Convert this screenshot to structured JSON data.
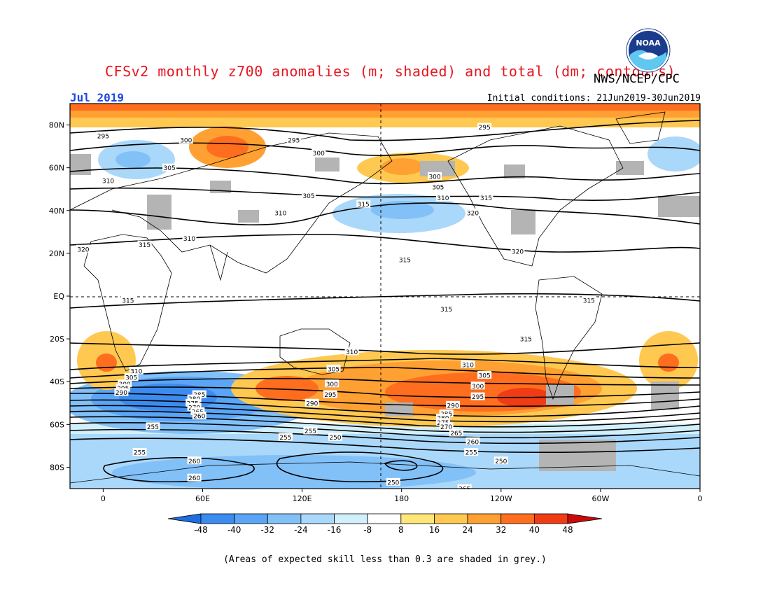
{
  "header": {
    "title": "CFSv2 monthly z700 anomalies (m; shaded) and total (dm; contours)",
    "agency": "NWS/NCEP/CPC",
    "month": "Jul 2019",
    "initial_conditions": "Initial conditions: 21Jun2019-30Jun2019",
    "logo_text": "NOAA"
  },
  "map": {
    "lat_labels": [
      "80N",
      "60N",
      "40N",
      "20N",
      "EQ",
      "20S",
      "40S",
      "60S",
      "80S"
    ],
    "lon_labels": [
      "0",
      "60E",
      "120E",
      "180",
      "120W",
      "60W",
      "0"
    ],
    "contour_labels": [
      {
        "text": "295",
        "lon": 0,
        "lat": 75
      },
      {
        "text": "300",
        "lon": 50,
        "lat": 73
      },
      {
        "text": "295",
        "lon": 115,
        "lat": 73
      },
      {
        "text": "300",
        "lon": 130,
        "lat": 67
      },
      {
        "text": "295",
        "lon": 230,
        "lat": 79
      },
      {
        "text": "305",
        "lon": 40,
        "lat": 60
      },
      {
        "text": "310",
        "lon": 3,
        "lat": 54
      },
      {
        "text": "305",
        "lon": 124,
        "lat": 47
      },
      {
        "text": "310",
        "lon": 107,
        "lat": 39
      },
      {
        "text": "315",
        "lon": 157,
        "lat": 43
      },
      {
        "text": "300",
        "lon": 200,
        "lat": 56
      },
      {
        "text": "305",
        "lon": 202,
        "lat": 51
      },
      {
        "text": "310",
        "lon": 205,
        "lat": 46
      },
      {
        "text": "315",
        "lon": 231,
        "lat": 46
      },
      {
        "text": "320",
        "lon": 223,
        "lat": 39
      },
      {
        "text": "315",
        "lon": 25,
        "lat": 24
      },
      {
        "text": "310",
        "lon": 52,
        "lat": 27
      },
      {
        "text": "320",
        "lon": -12,
        "lat": 22
      },
      {
        "text": "320",
        "lon": 250,
        "lat": 21
      },
      {
        "text": "315",
        "lon": 182,
        "lat": 17
      },
      {
        "text": "315",
        "lon": 15,
        "lat": -2
      },
      {
        "text": "315",
        "lon": 207,
        "lat": -6
      },
      {
        "text": "315",
        "lon": 293,
        "lat": -2
      },
      {
        "text": "315",
        "lon": 255,
        "lat": -20
      },
      {
        "text": "310",
        "lon": 150,
        "lat": -26
      },
      {
        "text": "310",
        "lon": 220,
        "lat": -32
      },
      {
        "text": "305",
        "lon": 230,
        "lat": -37
      },
      {
        "text": "310",
        "lon": 20,
        "lat": -35
      },
      {
        "text": "305",
        "lon": 17,
        "lat": -38
      },
      {
        "text": "300",
        "lon": 13,
        "lat": -41
      },
      {
        "text": "295",
        "lon": 12,
        "lat": -43
      },
      {
        "text": "290",
        "lon": 11,
        "lat": -45
      },
      {
        "text": "305",
        "lon": 139,
        "lat": -34
      },
      {
        "text": "300",
        "lon": 138,
        "lat": -41
      },
      {
        "text": "295",
        "lon": 137,
        "lat": -46
      },
      {
        "text": "290",
        "lon": 126,
        "lat": -50
      },
      {
        "text": "285",
        "lon": 58,
        "lat": -46
      },
      {
        "text": "280",
        "lon": 55,
        "lat": -48
      },
      {
        "text": "275",
        "lon": 54,
        "lat": -50
      },
      {
        "text": "270",
        "lon": 55,
        "lat": -52
      },
      {
        "text": "265",
        "lon": 57,
        "lat": -54
      },
      {
        "text": "260",
        "lon": 58,
        "lat": -56
      },
      {
        "text": "300",
        "lon": 226,
        "lat": -42
      },
      {
        "text": "295",
        "lon": 226,
        "lat": -47
      },
      {
        "text": "290",
        "lon": 211,
        "lat": -51
      },
      {
        "text": "285",
        "lon": 207,
        "lat": -55
      },
      {
        "text": "280",
        "lon": 205,
        "lat": -57
      },
      {
        "text": "275",
        "lon": 205,
        "lat": -59
      },
      {
        "text": "270",
        "lon": 207,
        "lat": -61
      },
      {
        "text": "265",
        "lon": 213,
        "lat": -64
      },
      {
        "text": "260",
        "lon": 223,
        "lat": -68
      },
      {
        "text": "255",
        "lon": 222,
        "lat": -73
      },
      {
        "text": "250",
        "lon": 240,
        "lat": -77
      },
      {
        "text": "255",
        "lon": 30,
        "lat": -61
      },
      {
        "text": "255",
        "lon": 110,
        "lat": -66
      },
      {
        "text": "255",
        "lon": 125,
        "lat": -63
      },
      {
        "text": "250",
        "lon": 140,
        "lat": -66
      },
      {
        "text": "255",
        "lon": 22,
        "lat": -73
      },
      {
        "text": "260",
        "lon": 55,
        "lat": -77
      },
      {
        "text": "260",
        "lon": 55,
        "lat": -85
      },
      {
        "text": "250",
        "lon": 175,
        "lat": -87
      },
      {
        "text": "265",
        "lon": 218,
        "lat": -90
      }
    ]
  },
  "colorbar": {
    "tick_labels": [
      "-48",
      "-40",
      "-32",
      "-24",
      "-16",
      "-8",
      "8",
      "16",
      "24",
      "32",
      "40",
      "48"
    ],
    "colors": [
      "#1e6ee0",
      "#3c8cf0",
      "#5aa5f5",
      "#82c0f8",
      "#aad8fb",
      "#d2f0fc",
      "#ffffff",
      "#ffe678",
      "#ffc850",
      "#ffa032",
      "#ff6e1e",
      "#f03c14",
      "#c80a0a"
    ]
  },
  "footnote": "(Areas of expected skill less than 0.3 are shaded in grey.)",
  "colors": {
    "title": "#e8141e",
    "month": "#1e46e6",
    "skill_grey": "#b4b4b4"
  }
}
